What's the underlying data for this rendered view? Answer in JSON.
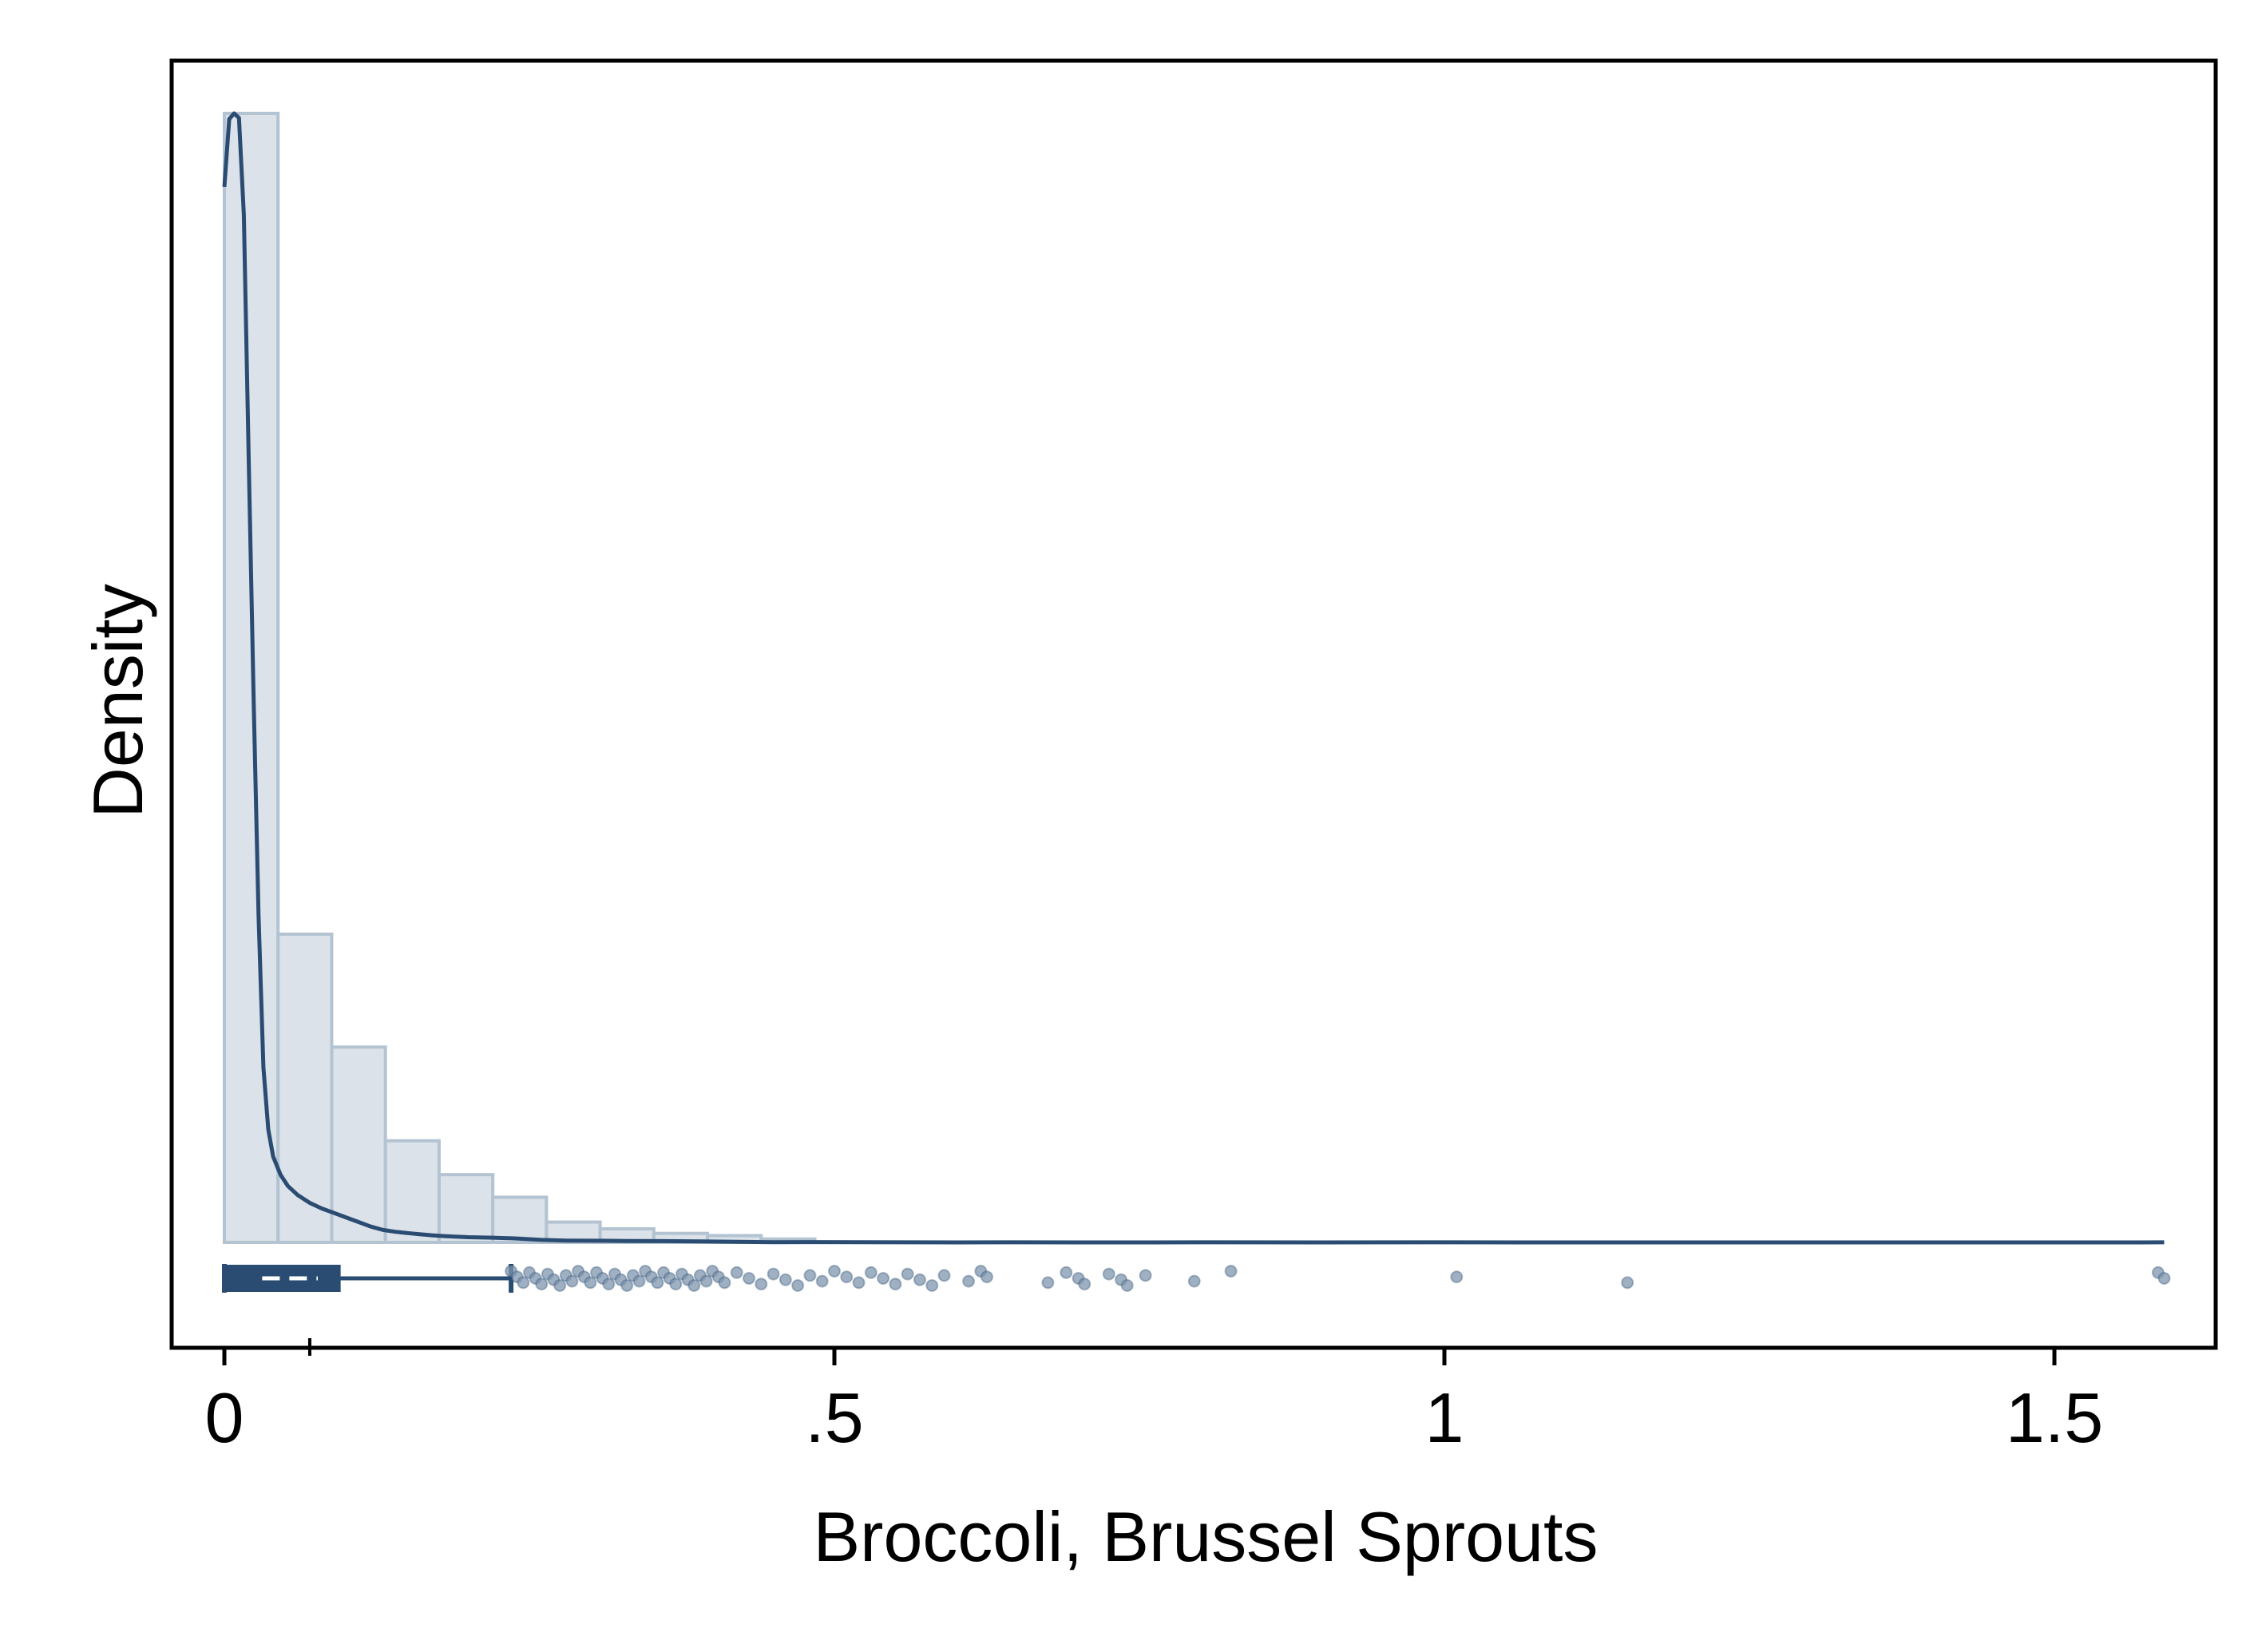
{
  "chart_data": {
    "type": "histogram",
    "title": "",
    "xlabel": "Broccoli, Brussel Sprouts",
    "ylabel": "Density",
    "xlim": [
      -0.044,
      1.63
    ],
    "x_ticks": [
      {
        "value": 0,
        "label": "0"
      },
      {
        "value": 0.5,
        "label": ".5"
      },
      {
        "value": 1,
        "label": "1"
      },
      {
        "value": 1.5,
        "label": "1.5"
      }
    ],
    "y_ticks_shown": false,
    "grid": false,
    "legend": false,
    "histogram": {
      "bin_width": 0.044,
      "bin_start": 0,
      "relative_heights": [
        1.0,
        0.273,
        0.173,
        0.09,
        0.06,
        0.04,
        0.018,
        0.012,
        0.008,
        0.006,
        0.003
      ]
    },
    "kde": {
      "points": [
        [
          0.0,
          0.935
        ],
        [
          0.004,
          0.995
        ],
        [
          0.008,
          1.0
        ],
        [
          0.012,
          0.996
        ],
        [
          0.016,
          0.91
        ],
        [
          0.02,
          0.69
        ],
        [
          0.024,
          0.48
        ],
        [
          0.028,
          0.29
        ],
        [
          0.032,
          0.155
        ],
        [
          0.036,
          0.1
        ],
        [
          0.04,
          0.076
        ],
        [
          0.046,
          0.06
        ],
        [
          0.052,
          0.05
        ],
        [
          0.06,
          0.042
        ],
        [
          0.07,
          0.035
        ],
        [
          0.08,
          0.03
        ],
        [
          0.09,
          0.026
        ],
        [
          0.1,
          0.022
        ],
        [
          0.11,
          0.018
        ],
        [
          0.12,
          0.014
        ],
        [
          0.13,
          0.011
        ],
        [
          0.14,
          0.0094
        ],
        [
          0.15,
          0.0083
        ],
        [
          0.16,
          0.0073
        ],
        [
          0.17,
          0.0063
        ],
        [
          0.18,
          0.0056
        ],
        [
          0.2,
          0.0046
        ],
        [
          0.22,
          0.0042
        ],
        [
          0.24,
          0.0035
        ],
        [
          0.26,
          0.0022
        ],
        [
          0.28,
          0.0016
        ],
        [
          0.3,
          0.0015
        ],
        [
          0.33,
          0.0013
        ],
        [
          0.36,
          0.0011
        ],
        [
          0.39,
          0.0009
        ],
        [
          0.42,
          0.0005
        ],
        [
          0.45,
          0.0002
        ],
        [
          0.48,
          0.0003
        ],
        [
          0.52,
          0.0002
        ],
        [
          0.56,
          0.0001
        ],
        [
          0.6,
          0.0
        ],
        [
          0.64,
          0.0001
        ],
        [
          0.7,
          0.0
        ],
        [
          0.76,
          0.0
        ],
        [
          0.8,
          0.0001
        ],
        [
          0.9,
          0.0
        ],
        [
          1.0,
          0.0001
        ],
        [
          1.1,
          0.0
        ],
        [
          1.2,
          0.0
        ],
        [
          1.3,
          0.0
        ],
        [
          1.4,
          0.0
        ],
        [
          1.5,
          0.0
        ],
        [
          1.57,
          0.0
        ],
        [
          1.59,
          0.0001
        ]
      ]
    },
    "boxplot": {
      "min": 0,
      "q1": 0,
      "median": 0.031,
      "mean": 0.07,
      "q3": 0.094,
      "upper_whisker": 0.235,
      "outliers": [
        0.235,
        0.24,
        0.245,
        0.25,
        0.255,
        0.26,
        0.265,
        0.27,
        0.275,
        0.28,
        0.285,
        0.29,
        0.295,
        0.3,
        0.305,
        0.31,
        0.315,
        0.32,
        0.325,
        0.33,
        0.335,
        0.34,
        0.345,
        0.35,
        0.355,
        0.36,
        0.365,
        0.37,
        0.375,
        0.38,
        0.385,
        0.39,
        0.395,
        0.4,
        0.405,
        0.41,
        0.42,
        0.43,
        0.44,
        0.45,
        0.46,
        0.47,
        0.48,
        0.49,
        0.5,
        0.51,
        0.52,
        0.53,
        0.54,
        0.55,
        0.56,
        0.57,
        0.58,
        0.59,
        0.61,
        0.62,
        0.625,
        0.675,
        0.69,
        0.7,
        0.705,
        0.725,
        0.735,
        0.74,
        0.755,
        0.795,
        0.825,
        1.01,
        1.15,
        1.585,
        1.59
      ]
    }
  },
  "colors": {
    "navy": "#2b4c72",
    "bar_fill": "#dbe2e9",
    "bar_stroke": "#b3c3d2",
    "point_fill": "#7f95ae"
  }
}
